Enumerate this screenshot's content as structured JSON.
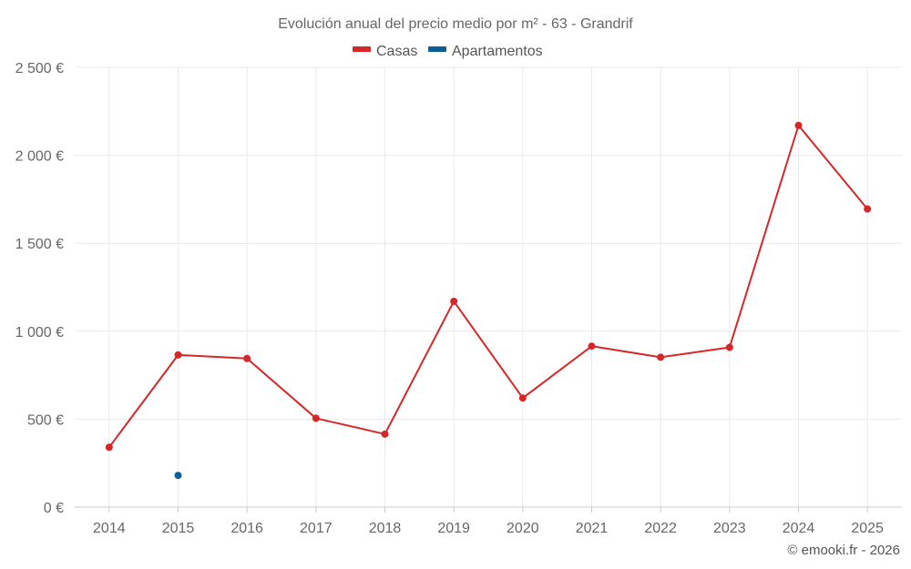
{
  "chart_data": {
    "type": "line",
    "title": "Evolución anual del precio medio por m² - 63 - Grandrif",
    "categories": [
      "2014",
      "2015",
      "2016",
      "2017",
      "2018",
      "2019",
      "2020",
      "2021",
      "2022",
      "2023",
      "2024",
      "2025"
    ],
    "series": [
      {
        "name": "Casas",
        "color": "#d62728",
        "values": [
          340,
          865,
          845,
          505,
          415,
          1170,
          620,
          915,
          852,
          908,
          2170,
          1695
        ]
      },
      {
        "name": "Apartamentos",
        "color": "#0b5f96",
        "values": [
          null,
          180,
          null,
          null,
          null,
          null,
          null,
          null,
          null,
          null,
          null,
          null
        ]
      }
    ],
    "ylim": [
      0,
      2500
    ],
    "yticks": [
      0,
      500,
      1000,
      1500,
      2000,
      2500
    ],
    "ytick_labels": [
      "0 €",
      "500 €",
      "1 000 €",
      "1 500 €",
      "2 000 €",
      "2 500 €"
    ],
    "grid": true,
    "legend_position": "top-center"
  },
  "credit": "© emooki.fr - 2026"
}
